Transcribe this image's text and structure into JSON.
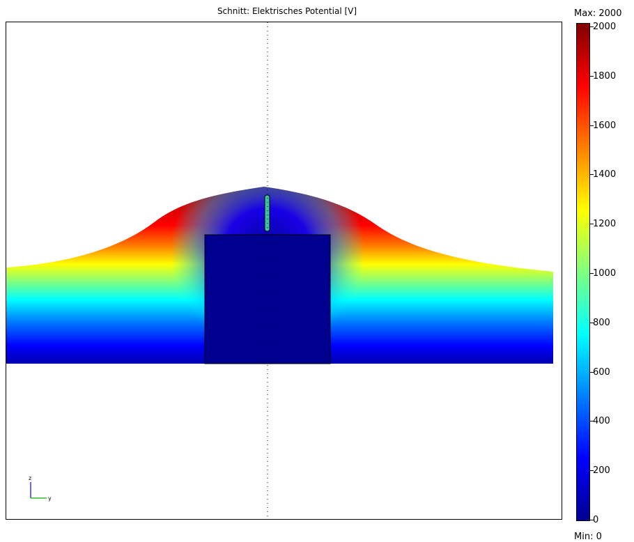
{
  "chart_data": {
    "type": "heatmap",
    "title": "Schnitt: Elektrisches Potential [V]",
    "field": "Elektrisches Potential",
    "unit": "V",
    "colormap": "jet",
    "min": 0,
    "max": 2000,
    "max_label": "Max: 2000",
    "min_label": "Min: 0",
    "colorbar_ticks": [
      0,
      200,
      400,
      600,
      800,
      1000,
      1200,
      1400,
      1600,
      1800,
      2000
    ],
    "symmetry_axis": "dotted vertical line through centre",
    "orientation_axes": [
      "z",
      "y"
    ]
  }
}
